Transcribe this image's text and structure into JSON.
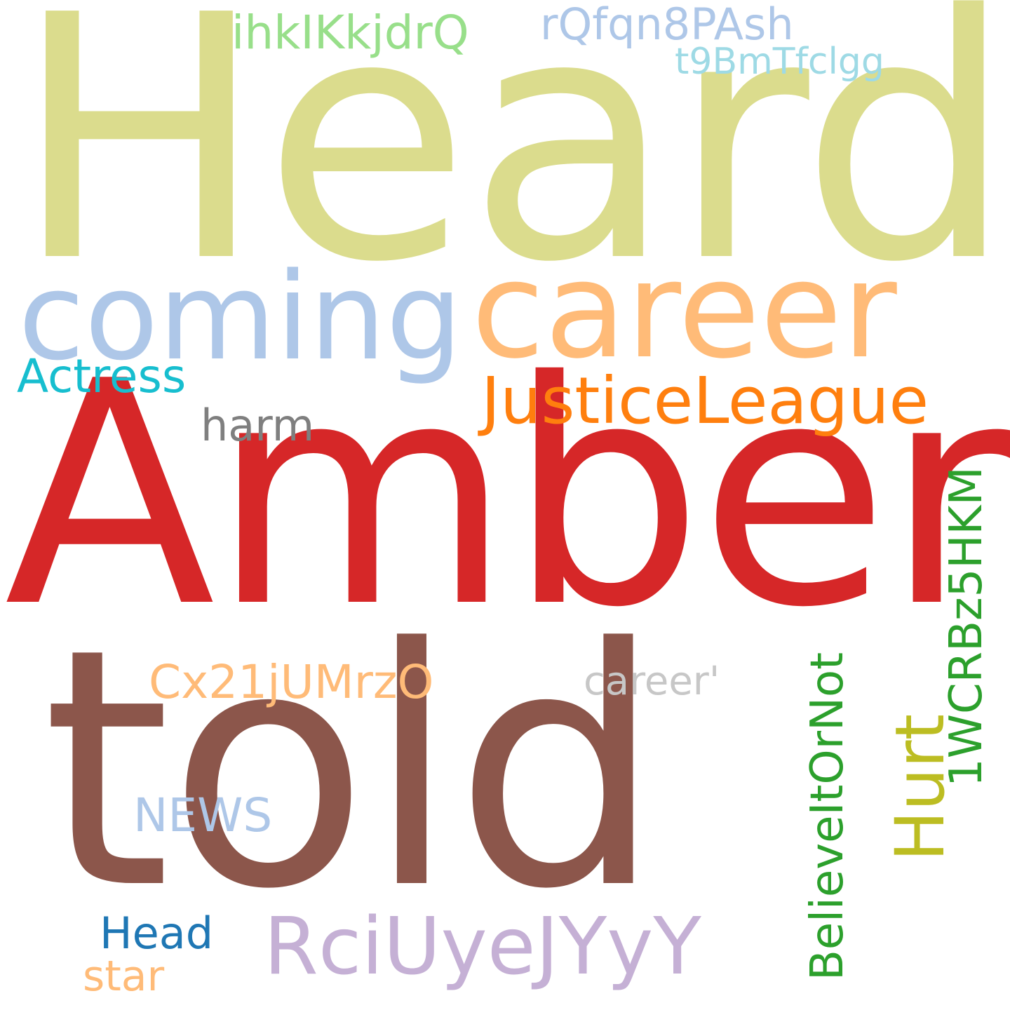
{
  "words": [
    {
      "id": "heard",
      "text": "Heard",
      "color": "#dbdc8d"
    },
    {
      "id": "amber",
      "text": "Amber",
      "color": "#d62728"
    },
    {
      "id": "told",
      "text": "told",
      "color": "#8c564b"
    },
    {
      "id": "career",
      "text": "career",
      "color": "#ffbb78"
    },
    {
      "id": "coming",
      "text": "coming",
      "color": "#aec7e8"
    },
    {
      "id": "justiceleague",
      "text": "JusticeLeague",
      "color": "#ff7f0e"
    },
    {
      "id": "actress",
      "text": "Actress",
      "color": "#17becf"
    },
    {
      "id": "harm",
      "text": "harm",
      "color": "#7f7f7f"
    },
    {
      "id": "ihkikkjdrq",
      "text": "ihkIKkjdrQ",
      "color": "#98df8a"
    },
    {
      "id": "rqfqn8pash",
      "text": "rQfqn8PAsh",
      "color": "#aec7e8"
    },
    {
      "id": "t9bmtfclgg",
      "text": "t9BmTfclgg",
      "color": "#9edae5"
    },
    {
      "id": "cx21jumrzo",
      "text": "Cx21jUMrzO",
      "color": "#ffbb78"
    },
    {
      "id": "career-quote",
      "text": "career'",
      "color": "#c7c7c7"
    },
    {
      "id": "news",
      "text": "NEWS",
      "color": "#aec7e8"
    },
    {
      "id": "rciuyejyyy",
      "text": "RciUyeJYyY",
      "color": "#c5b0d5"
    },
    {
      "id": "head",
      "text": "Head",
      "color": "#1f77b4"
    },
    {
      "id": "star",
      "text": "star",
      "color": "#ffbb78"
    },
    {
      "id": "hurt",
      "text": "Hurt",
      "color": "#bcbd22"
    },
    {
      "id": "believeitornot",
      "text": "BelieveItOrNot",
      "color": "#2ca02c"
    },
    {
      "id": "1wcrbz5hkm",
      "text": "1WCRBz5HKM",
      "color": "#2ca02c"
    }
  ]
}
